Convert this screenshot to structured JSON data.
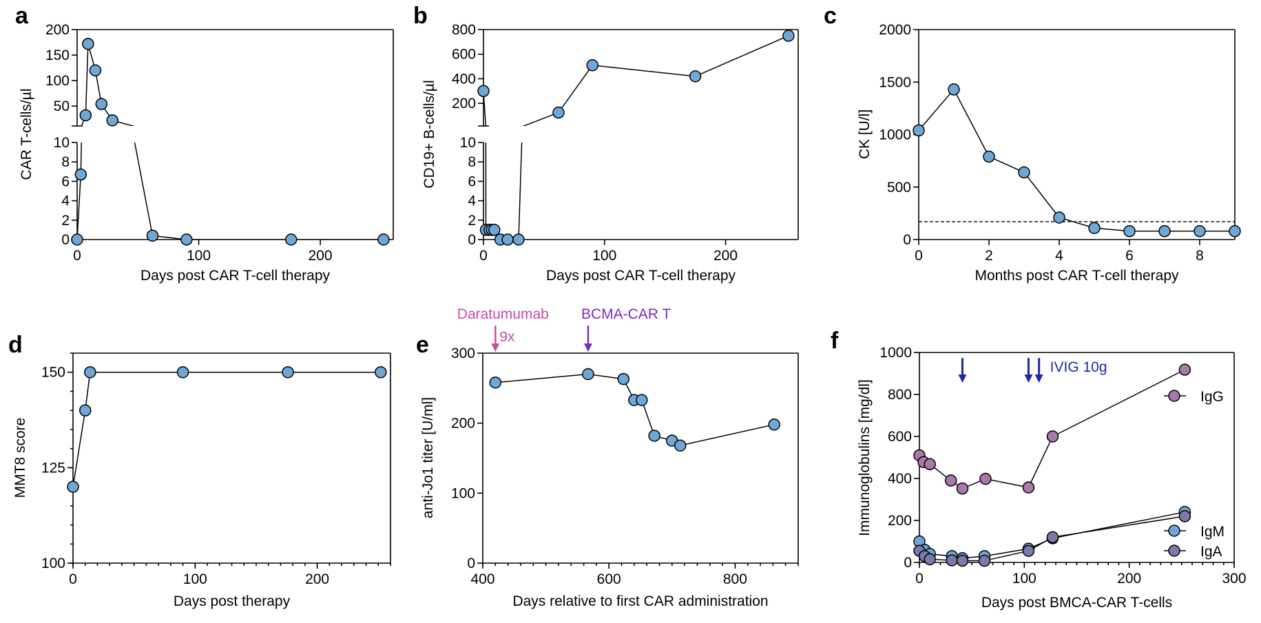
{
  "colors": {
    "blue": "#6fa8d8",
    "igg": "#a97aa9",
    "iga": "#7c79ab",
    "daratumumab": "#cc4aa0",
    "bcma": "#7a2bbf",
    "ivig": "#1b2aa6"
  },
  "chart_data": [
    {
      "id": "a",
      "letter": "a",
      "type": "line",
      "title": "",
      "xlabel": "Days post CAR T-cell therapy",
      "ylabel": "CAR T-cells/µl",
      "xlim": [
        0,
        260
      ],
      "ylim_segments": [
        [
          0,
          10
        ],
        [
          11,
          200
        ]
      ],
      "axis_break": true,
      "xticks": [
        "0",
        "100",
        "200"
      ],
      "xtick_values": [
        0,
        100,
        200
      ],
      "yticks_segments": [
        [
          0,
          2,
          4,
          6,
          8,
          10
        ],
        [
          50,
          100,
          150,
          200
        ]
      ],
      "series": [
        {
          "name": "CAR T-cells",
          "color": "#6fa8d8",
          "x": [
            0,
            3,
            7,
            9,
            15,
            20,
            29,
            62,
            90,
            176,
            252
          ],
          "y": [
            0,
            6.7,
            32,
            172,
            120,
            54,
            22,
            0.4,
            0,
            0,
            0
          ]
        }
      ]
    },
    {
      "id": "b",
      "letter": "b",
      "type": "line",
      "title": "",
      "xlabel": "Days post CAR T-cell therapy",
      "ylabel": "CD19+ B-cells/µl",
      "xlim": [
        0,
        260
      ],
      "ylim_segments": [
        [
          0,
          10
        ],
        [
          16,
          800
        ]
      ],
      "axis_break": true,
      "xticks": [
        "0",
        "100",
        "200"
      ],
      "xtick_values": [
        0,
        100,
        200
      ],
      "yticks_segments": [
        [
          0,
          2,
          4,
          6,
          8,
          10
        ],
        [
          200,
          400,
          600,
          800
        ]
      ],
      "series": [
        {
          "name": "CD19+ B-cells",
          "color": "#6fa8d8",
          "x": [
            0,
            2,
            5,
            7,
            9,
            14,
            20,
            29,
            62,
            90,
            175,
            252
          ],
          "y": [
            300,
            1,
            1,
            1,
            1,
            0,
            0,
            0,
            125,
            510,
            420,
            750
          ]
        }
      ]
    },
    {
      "id": "c",
      "letter": "c",
      "type": "line",
      "title": "",
      "xlabel": "Months post CAR T-cell therapy",
      "ylabel": "CK [U/l]",
      "xlim": [
        0,
        9
      ],
      "ylim": [
        0,
        2000
      ],
      "xticks": [
        "0",
        "2",
        "4",
        "6",
        "8"
      ],
      "xtick_values": [
        0,
        2,
        4,
        6,
        8
      ],
      "yticks": [
        0,
        500,
        1000,
        1500,
        2000
      ],
      "reference_line": {
        "y": 170,
        "style": "dashed"
      },
      "series": [
        {
          "name": "CK",
          "color": "#6fa8d8",
          "x": [
            0,
            1,
            2,
            3,
            4,
            5,
            6,
            7,
            8,
            9
          ],
          "y": [
            1040,
            1430,
            790,
            640,
            210,
            110,
            80,
            80,
            80,
            80
          ]
        }
      ]
    },
    {
      "id": "d",
      "letter": "d",
      "type": "line",
      "title": "",
      "xlabel": "Days post therapy",
      "ylabel": "MMT8 score",
      "xlim": [
        0,
        260
      ],
      "ylim": [
        100,
        155
      ],
      "xticks": [
        "0",
        "100",
        "200"
      ],
      "xtick_values": [
        0,
        100,
        200
      ],
      "yticks": [
        100,
        125,
        150
      ],
      "series": [
        {
          "name": "MMT8",
          "color": "#6fa8d8",
          "x": [
            0,
            10,
            14,
            90,
            176,
            252
          ],
          "y": [
            120,
            140,
            150,
            150,
            150,
            150
          ]
        }
      ]
    },
    {
      "id": "e",
      "letter": "e",
      "type": "line",
      "title": "",
      "xlabel": "Days relative to first CAR administration",
      "ylabel": "anti-Jo1 titer [U/ml]",
      "xlim": [
        400,
        900
      ],
      "ylim": [
        0,
        300
      ],
      "xticks": [
        "400",
        "600",
        "800"
      ],
      "xtick_values": [
        400,
        600,
        800
      ],
      "yticks": [
        0,
        100,
        200,
        300
      ],
      "annotations": [
        {
          "text": "Daratumumab",
          "subtext": "9x",
          "x": 420,
          "color": "#cc4aa0"
        },
        {
          "text": "BCMA-CAR T",
          "subtext": "",
          "x": 567,
          "color": "#7a2bbf"
        }
      ],
      "series": [
        {
          "name": "anti-Jo1",
          "color": "#6fa8d8",
          "x": [
            420,
            567,
            623,
            640,
            652,
            672,
            700,
            713,
            862
          ],
          "y": [
            258,
            270,
            263,
            233,
            233,
            182,
            175,
            168,
            198
          ]
        }
      ]
    },
    {
      "id": "f",
      "letter": "f",
      "type": "line",
      "title": "",
      "xlabel": "Days post BMCA-CAR T-cells",
      "ylabel": "Immunoglobulins [mg/dl]",
      "xlim": [
        0,
        300
      ],
      "ylim": [
        0,
        1000
      ],
      "xticks": [
        "0",
        "100",
        "200",
        "300"
      ],
      "xtick_values": [
        0,
        100,
        200,
        300
      ],
      "yticks": [
        0,
        200,
        400,
        600,
        800,
        1000
      ],
      "annotations": [
        {
          "text": "IVIG 10g",
          "x_arrows": [
            41,
            104,
            114
          ],
          "color": "#1b2aa6"
        }
      ],
      "legend": [
        {
          "name": "IgG",
          "color": "#a97aa9"
        },
        {
          "name": "IgM",
          "color": "#6fa8d8"
        },
        {
          "name": "IgA",
          "color": "#7c79ab"
        }
      ],
      "series": [
        {
          "name": "IgG",
          "color": "#a97aa9",
          "x": [
            0,
            4,
            10,
            30,
            41,
            63,
            104,
            127,
            253
          ],
          "y": [
            510,
            478,
            468,
            390,
            352,
            398,
            357,
            600,
            918
          ]
        },
        {
          "name": "IgM",
          "color": "#6fa8d8",
          "x": [
            0,
            5,
            10,
            31,
            41,
            62,
            104,
            127,
            253
          ],
          "y": [
            100,
            60,
            40,
            30,
            20,
            30,
            65,
            115,
            240
          ]
        },
        {
          "name": "IgA",
          "color": "#7c79ab",
          "x": [
            0,
            5,
            10,
            31,
            41,
            62,
            104,
            127,
            253
          ],
          "y": [
            55,
            30,
            15,
            10,
            8,
            8,
            55,
            120,
            220
          ]
        }
      ]
    }
  ]
}
